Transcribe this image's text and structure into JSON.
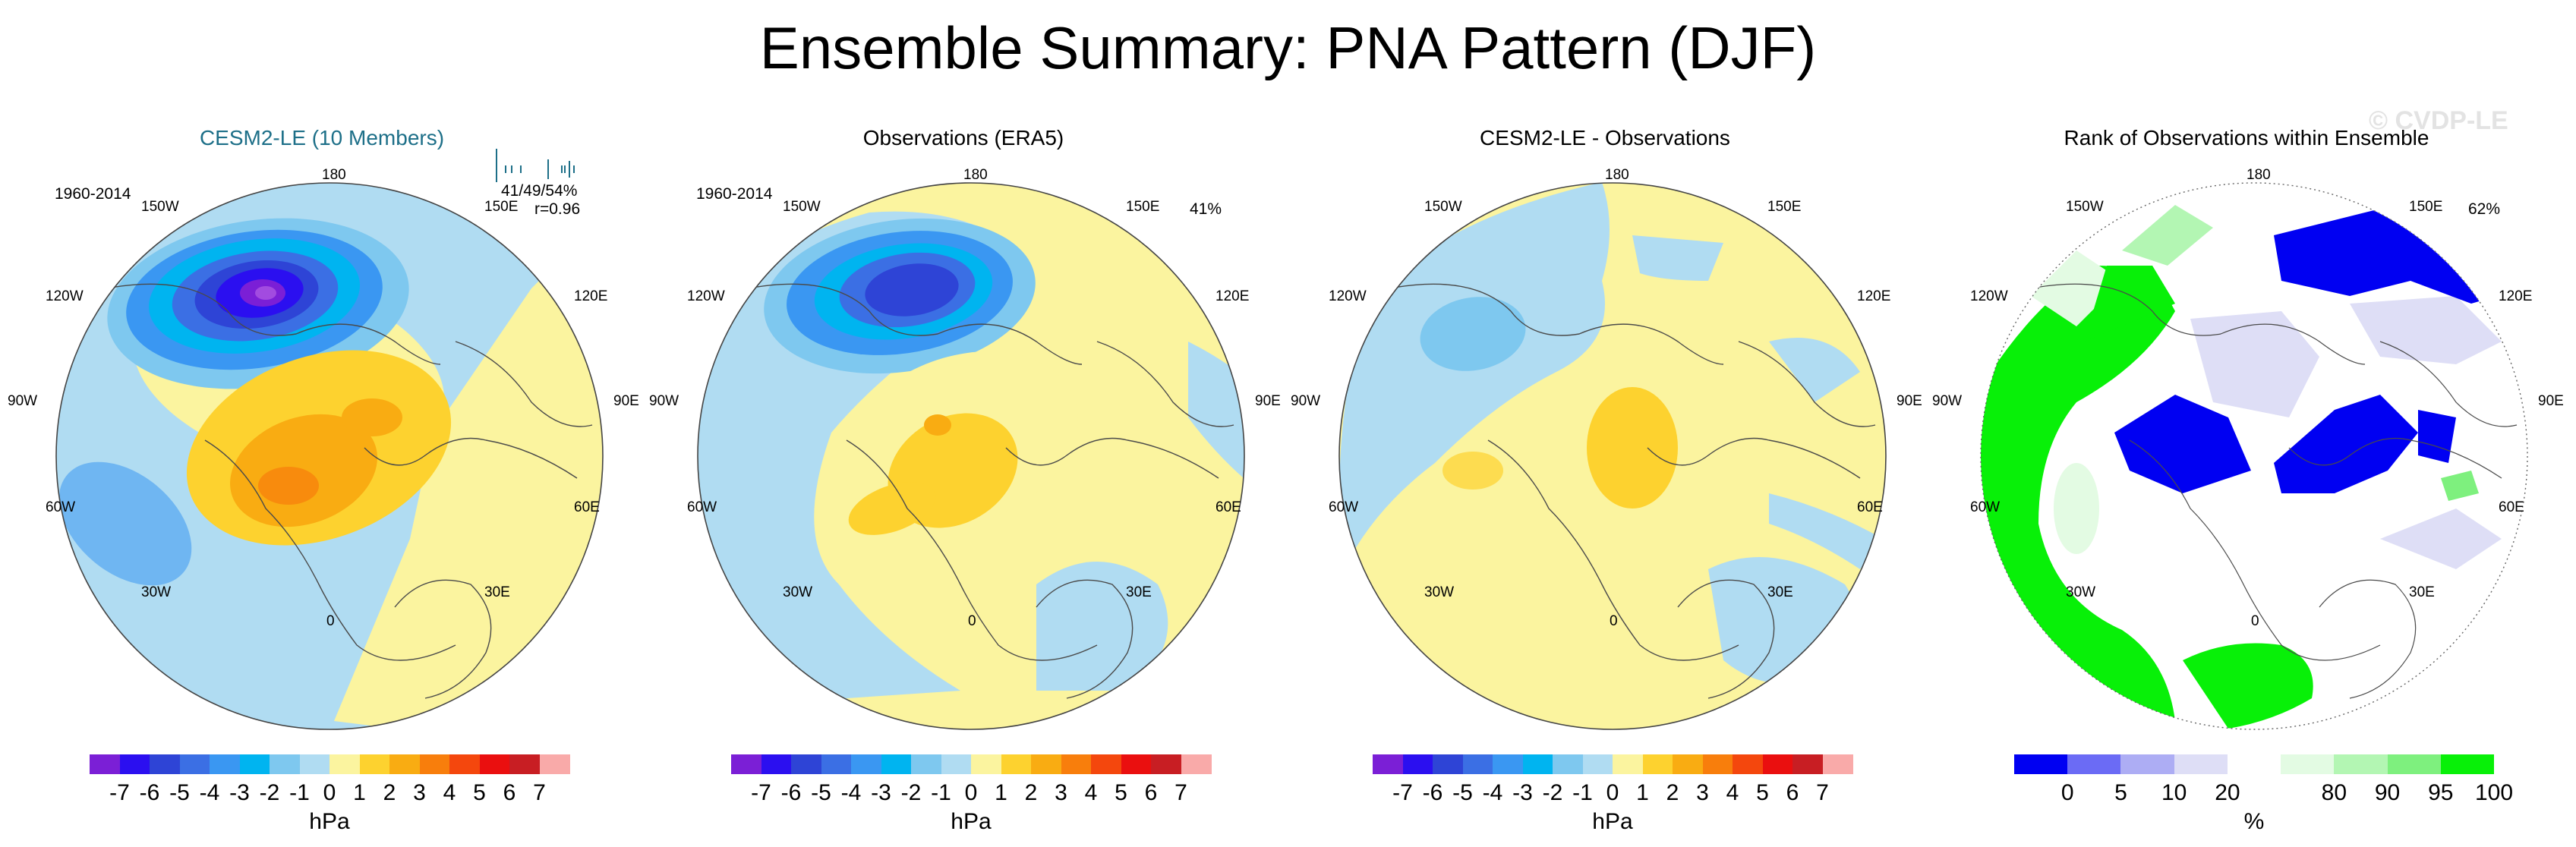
{
  "title": "Ensemble Summary: PNA Pattern (DJF)",
  "watermark": "© CVDP-LE",
  "colors": {
    "neg": [
      "#7b1fd6",
      "#2b0ff0",
      "#2e44d6",
      "#3b6fe4",
      "#3a97f2",
      "#00b4f0",
      "#7ec8ef",
      "#b0dcf2"
    ],
    "pos": [
      "#fbf49f",
      "#fdd22f",
      "#f9ac12",
      "#f87e0c",
      "#f4470d",
      "#ea0f0f",
      "#c81e23",
      "#f9aaa9"
    ],
    "rank": [
      "#0000f2",
      "#6b6bf5",
      "#adadf4",
      "#dedef6",
      "#ffffff",
      "#e3fbe3",
      "#b3f6b3",
      "#7ef07e",
      "#08f008"
    ],
    "coast": "#4a4a4a",
    "title_teal": "#1d6f88"
  },
  "icons": {
    "histogram": "histogram-icon",
    "globe": "polar-map-icon"
  },
  "longitude_labels": [
    "180",
    "150E",
    "120E",
    "90E",
    "60E",
    "30E",
    "0",
    "30W",
    "60W",
    "90W",
    "120W",
    "150W"
  ],
  "colorbar_hpa": {
    "ticks": [
      "-7",
      "-6",
      "-5",
      "-4",
      "-3",
      "-2",
      "-1",
      "0",
      "1",
      "2",
      "3",
      "4",
      "5",
      "6",
      "7"
    ],
    "unit": "hPa"
  },
  "colorbar_rank": {
    "ticks": [
      "0",
      "5",
      "10",
      "20",
      "80",
      "90",
      "95",
      "100"
    ],
    "unit": "%"
  },
  "panels": [
    {
      "title": "CESM2-LE (10 Members)",
      "period": "1960-2014",
      "stat_line1": "41/49/54%",
      "stat_line2": "r=0.96",
      "kind": "model"
    },
    {
      "title": "Observations (ERA5)",
      "period": "1960-2014",
      "stat_line1": "41%",
      "kind": "obs"
    },
    {
      "title": "CESM2-LE - Observations",
      "kind": "diff"
    },
    {
      "title": "Rank of Observations within Ensemble",
      "stat_line1": "62%",
      "kind": "rank"
    }
  ]
}
